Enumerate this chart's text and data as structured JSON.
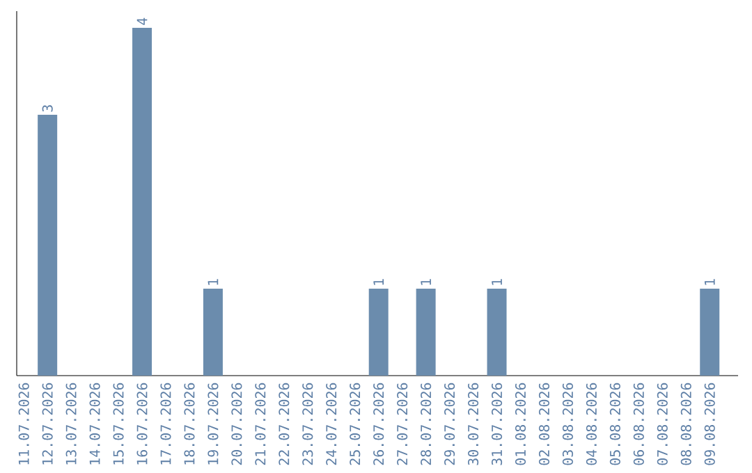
{
  "chart_data": {
    "type": "bar",
    "categories": [
      "11.07.2026",
      "12.07.2026",
      "13.07.2026",
      "14.07.2026",
      "15.07.2026",
      "16.07.2026",
      "17.07.2026",
      "18.07.2026",
      "19.07.2026",
      "20.07.2026",
      "21.07.2026",
      "22.07.2026",
      "23.07.2026",
      "24.07.2026",
      "25.07.2026",
      "26.07.2026",
      "27.07.2026",
      "28.07.2026",
      "29.07.2026",
      "30.07.2026",
      "31.07.2026",
      "01.08.2026",
      "02.08.2026",
      "03.08.2026",
      "04.08.2026",
      "05.08.2026",
      "06.08.2026",
      "07.08.2026",
      "08.08.2026",
      "09.08.2026"
    ],
    "values": [
      0,
      3,
      0,
      0,
      0,
      4,
      0,
      0,
      1,
      0,
      0,
      0,
      0,
      0,
      0,
      1,
      0,
      1,
      0,
      0,
      1,
      0,
      0,
      0,
      0,
      0,
      0,
      0,
      0,
      1
    ],
    "value_labels": [
      null,
      "3",
      null,
      null,
      null,
      "4",
      null,
      null,
      "1",
      null,
      null,
      null,
      null,
      null,
      null,
      "1",
      null,
      "1",
      null,
      null,
      "1",
      null,
      null,
      null,
      null,
      null,
      null,
      null,
      null,
      "1"
    ],
    "color": "#6b8cad",
    "tick_labels": "x"
  }
}
